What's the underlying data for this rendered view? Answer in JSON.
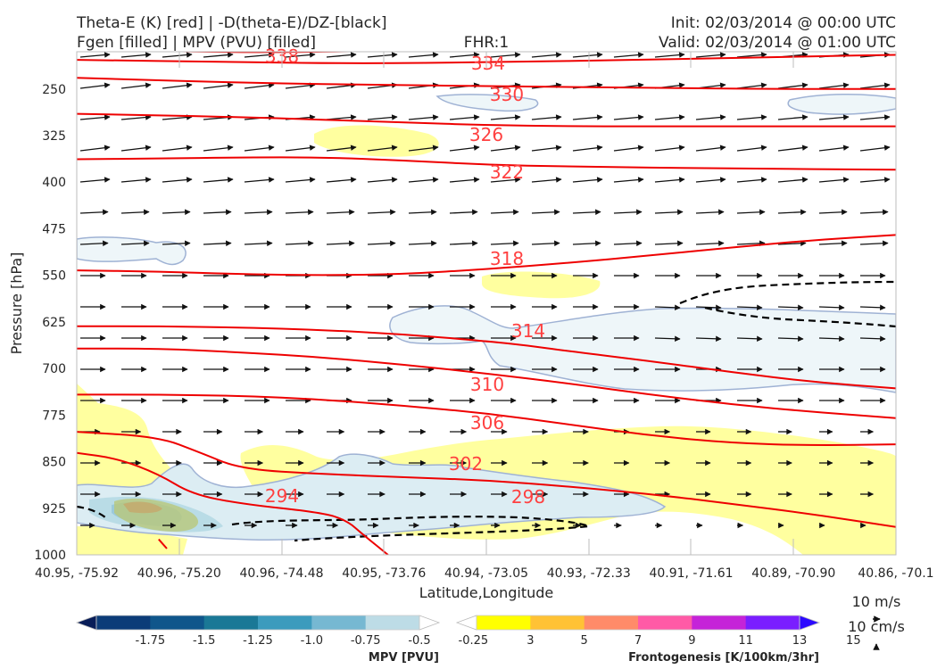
{
  "titles": {
    "left_line1": "Theta-E (K) [red] | -D(theta-E)/DZ-[black]",
    "left_line2": "Fgen [filled] | MPV (PVU) [filled]",
    "center": "FHR:1",
    "right_line1": "Init: 02/03/2014 @ 00:00 UTC",
    "right_line2": "Valid: 02/03/2014 @ 01:00 UTC"
  },
  "chart_data": {
    "type": "cross-section",
    "xlabel": "Latitude,Longitude",
    "ylabel": "Pressure [hPa]",
    "x_ticks": [
      "40.95, -75.92",
      "40.96, -75.20",
      "40.96, -74.48",
      "40.95, -73.76",
      "40.94, -73.05",
      "40.93, -72.33",
      "40.91, -71.61",
      "40.89, -70.90",
      "40.86, -70.1"
    ],
    "y_ticks": [
      250,
      325,
      400,
      475,
      550,
      625,
      700,
      775,
      850,
      925,
      1000
    ],
    "ylim": [
      1000,
      190
    ],
    "theta_e_contours": [
      {
        "label": "338",
        "points": [
          [
            0,
            186
          ],
          [
            0.15,
            190
          ],
          [
            0.23,
            191
          ],
          [
            0.4,
            188
          ],
          [
            0.6,
            185
          ],
          [
            0.8,
            183
          ],
          [
            1,
            182
          ]
        ]
      },
      {
        "label": "334",
        "points": [
          [
            0,
            203
          ],
          [
            0.2,
            207
          ],
          [
            0.35,
            209
          ],
          [
            0.5,
            207
          ],
          [
            0.7,
            203
          ],
          [
            0.9,
            197
          ],
          [
            1,
            195
          ]
        ]
      },
      {
        "label": "330",
        "points": [
          [
            0,
            232
          ],
          [
            0.2,
            240
          ],
          [
            0.4,
            244
          ],
          [
            0.55,
            246
          ],
          [
            0.7,
            248
          ],
          [
            0.85,
            250
          ],
          [
            1,
            250
          ]
        ]
      },
      {
        "label": "326",
        "points": [
          [
            0,
            290
          ],
          [
            0.2,
            295
          ],
          [
            0.4,
            304
          ],
          [
            0.5,
            308
          ],
          [
            0.6,
            310
          ],
          [
            0.8,
            310
          ],
          [
            1,
            310
          ]
        ]
      },
      {
        "label": "322",
        "points": [
          [
            0,
            363
          ],
          [
            0.1,
            362
          ],
          [
            0.2,
            360
          ],
          [
            0.3,
            360
          ],
          [
            0.4,
            365
          ],
          [
            0.5,
            372
          ],
          [
            0.6,
            375
          ],
          [
            0.8,
            378
          ],
          [
            1,
            380
          ]
        ]
      },
      {
        "label": "318",
        "points": [
          [
            0,
            542
          ],
          [
            0.1,
            544
          ],
          [
            0.2,
            548
          ],
          [
            0.3,
            550
          ],
          [
            0.4,
            548
          ],
          [
            0.5,
            540
          ],
          [
            0.6,
            530
          ],
          [
            0.7,
            518
          ],
          [
            0.8,
            505
          ],
          [
            0.9,
            493
          ],
          [
            1,
            485
          ]
        ]
      },
      {
        "label": "314",
        "points": [
          [
            0,
            632
          ],
          [
            0.1,
            632
          ],
          [
            0.2,
            634
          ],
          [
            0.3,
            638
          ],
          [
            0.4,
            645
          ],
          [
            0.5,
            656
          ],
          [
            0.55,
            663
          ],
          [
            0.6,
            672
          ],
          [
            0.7,
            688
          ],
          [
            0.8,
            706
          ],
          [
            0.9,
            722
          ],
          [
            1,
            732
          ]
        ]
      },
      {
        "label": "310",
        "points": [
          [
            0,
            668
          ],
          [
            0.1,
            668
          ],
          [
            0.2,
            674
          ],
          [
            0.3,
            682
          ],
          [
            0.4,
            694
          ],
          [
            0.5,
            708
          ],
          [
            0.6,
            724
          ],
          [
            0.7,
            742
          ],
          [
            0.8,
            758
          ],
          [
            0.9,
            770
          ],
          [
            1,
            780
          ]
        ]
      },
      {
        "label": "306",
        "points": [
          [
            0,
            742
          ],
          [
            0.1,
            742
          ],
          [
            0.2,
            744
          ],
          [
            0.3,
            750
          ],
          [
            0.4,
            760
          ],
          [
            0.5,
            772
          ],
          [
            0.6,
            790
          ],
          [
            0.7,
            808
          ],
          [
            0.8,
            820
          ],
          [
            0.9,
            824
          ],
          [
            1,
            822
          ]
        ]
      },
      {
        "label": "302",
        "points": [
          [
            0,
            802
          ],
          [
            0.1,
            810
          ],
          [
            0.15,
            835
          ],
          [
            0.2,
            862
          ],
          [
            0.3,
            870
          ],
          [
            0.4,
            875
          ],
          [
            0.5,
            880
          ],
          [
            0.6,
            890
          ],
          [
            0.7,
            902
          ],
          [
            0.8,
            918
          ],
          [
            0.9,
            935
          ],
          [
            1,
            955
          ]
        ]
      },
      {
        "label": "298",
        "points": [
          [
            0,
            836
          ],
          [
            0.05,
            845
          ],
          [
            0.1,
            870
          ],
          [
            0.14,
            902
          ],
          [
            0.2,
            918
          ],
          [
            0.3,
            932
          ],
          [
            0.33,
            945
          ],
          [
            0.35,
            968
          ],
          [
            0.38,
            1000
          ]
        ]
      },
      {
        "label": "294",
        "points": [
          [
            0.1,
            975
          ],
          [
            0.11,
            990
          ]
        ]
      }
    ]
  },
  "colorbars": {
    "mpv": {
      "title": "MPV [PVU]",
      "labels": [
        "-1.75",
        "-1.5",
        "-1.25",
        "-1.0",
        "-0.75",
        "-0.5",
        "-0.25"
      ],
      "colors": [
        "#081d58",
        "#0c3c78",
        "#0f568b",
        "#1a7896",
        "#3c9bbd",
        "#76b8d2",
        "#bddce6",
        "#ffffff"
      ]
    },
    "fgen": {
      "title": "Frontogenesis [K/100km/3hr]",
      "labels": [
        "3",
        "5",
        "7",
        "9",
        "11",
        "13",
        "15"
      ],
      "colors": [
        "#ffffff",
        "#ffff00",
        "#ffc235",
        "#ff8b69",
        "#ff5aa6",
        "#c523d8",
        "#7a1eff",
        "#2c0aff"
      ]
    }
  },
  "wind_reference": {
    "horizontal": "10 m/s",
    "vertical": "10 cm/s"
  }
}
